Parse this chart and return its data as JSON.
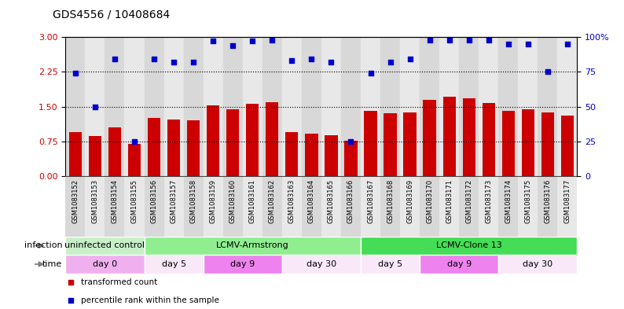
{
  "title": "GDS4556 / 10408684",
  "samples": [
    "GSM1083152",
    "GSM1083153",
    "GSM1083154",
    "GSM1083155",
    "GSM1083156",
    "GSM1083157",
    "GSM1083158",
    "GSM1083159",
    "GSM1083160",
    "GSM1083161",
    "GSM1083162",
    "GSM1083163",
    "GSM1083164",
    "GSM1083165",
    "GSM1083166",
    "GSM1083167",
    "GSM1083168",
    "GSM1083169",
    "GSM1083170",
    "GSM1083171",
    "GSM1083172",
    "GSM1083173",
    "GSM1083174",
    "GSM1083175",
    "GSM1083176",
    "GSM1083177"
  ],
  "bar_values": [
    0.95,
    0.87,
    1.06,
    0.7,
    1.26,
    1.22,
    1.2,
    1.52,
    1.44,
    1.56,
    1.6,
    0.95,
    0.92,
    0.88,
    0.76,
    1.4,
    1.35,
    1.38,
    1.64,
    1.72,
    1.68,
    1.58,
    1.4,
    1.44,
    1.38,
    1.3
  ],
  "percentile_values": [
    74,
    50,
    84,
    25,
    84,
    82,
    82,
    97,
    94,
    97,
    98,
    83,
    84,
    82,
    25,
    74,
    82,
    84,
    98,
    98,
    98,
    98,
    95,
    95,
    75,
    95
  ],
  "bar_color": "#cc0000",
  "point_color": "#0000cc",
  "ylim_left": [
    0,
    3
  ],
  "ylim_right": [
    0,
    100
  ],
  "yticks_left": [
    0,
    0.75,
    1.5,
    2.25,
    3
  ],
  "yticks_right": [
    0,
    25,
    50,
    75,
    100
  ],
  "hlines": [
    0.75,
    1.5,
    2.25
  ],
  "infection_groups": [
    {
      "label": "uninfected control",
      "start": 0,
      "end": 4,
      "color": "#c8f0c8"
    },
    {
      "label": "LCMV-Armstrong",
      "start": 4,
      "end": 15,
      "color": "#90ee90"
    },
    {
      "label": "LCMV-Clone 13",
      "start": 15,
      "end": 26,
      "color": "#44dd55"
    }
  ],
  "time_groups": [
    {
      "label": "day 0",
      "start": 0,
      "end": 4,
      "color": "#f0b0f0"
    },
    {
      "label": "day 5",
      "start": 4,
      "end": 7,
      "color": "#f8e8f8"
    },
    {
      "label": "day 9",
      "start": 7,
      "end": 11,
      "color": "#ee82ee"
    },
    {
      "label": "day 30",
      "start": 11,
      "end": 15,
      "color": "#f8e8f8"
    },
    {
      "label": "day 5",
      "start": 15,
      "end": 18,
      "color": "#f8e8f8"
    },
    {
      "label": "day 9",
      "start": 18,
      "end": 22,
      "color": "#ee82ee"
    },
    {
      "label": "day 30",
      "start": 22,
      "end": 26,
      "color": "#f8e8f8"
    }
  ],
  "legend_items": [
    {
      "label": "transformed count",
      "color": "#cc0000"
    },
    {
      "label": "percentile rank within the sample",
      "color": "#0000cc"
    }
  ],
  "bg_color": "#ffffff",
  "tick_label_fontsize": 6.0,
  "bar_width": 0.65,
  "col_colors": [
    "#d8d8d8",
    "#e8e8e8"
  ]
}
